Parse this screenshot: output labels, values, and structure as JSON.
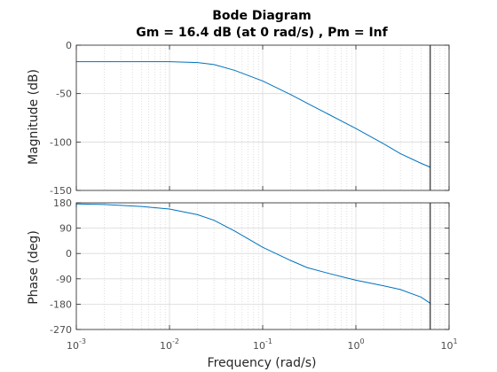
{
  "title": "Bode Diagram",
  "subtitle": "Gm = 16.4 dB (at 0 rad/s) ,  Pm = Inf",
  "colors": {
    "curve": "#0072bd",
    "axes": "#262626",
    "grid_major": "#d9d9d9",
    "grid_minor": "#c8c8c8",
    "marker_line": "#000000"
  },
  "chart_data": [
    {
      "type": "line",
      "name": "magnitude",
      "xlabel": "",
      "ylabel": "Magnitude (dB)",
      "x_scale": "log",
      "xlim": [
        0.001,
        10
      ],
      "ylim": [
        -150,
        0
      ],
      "yticks": [
        0,
        -50,
        -100,
        -150
      ],
      "grid": true,
      "series": [
        {
          "x": [
            0.001,
            0.002,
            0.005,
            0.01,
            0.02,
            0.03,
            0.05,
            0.1,
            0.2,
            0.3,
            0.5,
            1,
            2,
            3,
            5,
            6.28
          ],
          "values": [
            -17,
            -17,
            -17,
            -17,
            -18,
            -20,
            -26,
            -37,
            -51,
            -60,
            -71,
            -86,
            -102,
            -112,
            -122,
            -126
          ]
        }
      ],
      "vertical_marker_x": 6.28
    },
    {
      "type": "line",
      "name": "phase",
      "xlabel": "Frequency  (rad/s)",
      "ylabel": "Phase (deg)",
      "x_scale": "log",
      "xlim": [
        0.001,
        10
      ],
      "ylim": [
        -270,
        180
      ],
      "yticks": [
        180,
        90,
        0,
        -90,
        -180,
        -270
      ],
      "xticks": [
        {
          "value": 0.001,
          "base": "10",
          "exp": "-3"
        },
        {
          "value": 0.01,
          "base": "10",
          "exp": "-2"
        },
        {
          "value": 0.1,
          "base": "10",
          "exp": "-1"
        },
        {
          "value": 1,
          "base": "10",
          "exp": "0"
        },
        {
          "value": 10,
          "base": "10",
          "exp": "1"
        }
      ],
      "grid": true,
      "series": [
        {
          "x": [
            0.001,
            0.002,
            0.005,
            0.01,
            0.02,
            0.03,
            0.05,
            0.1,
            0.2,
            0.3,
            0.5,
            1,
            2,
            3,
            5,
            6.28
          ],
          "values": [
            176,
            174,
            167,
            158,
            138,
            118,
            80,
            22,
            -25,
            -50,
            -70,
            -95,
            -115,
            -128,
            -155,
            -177
          ]
        }
      ],
      "vertical_marker_x": 6.28
    }
  ]
}
